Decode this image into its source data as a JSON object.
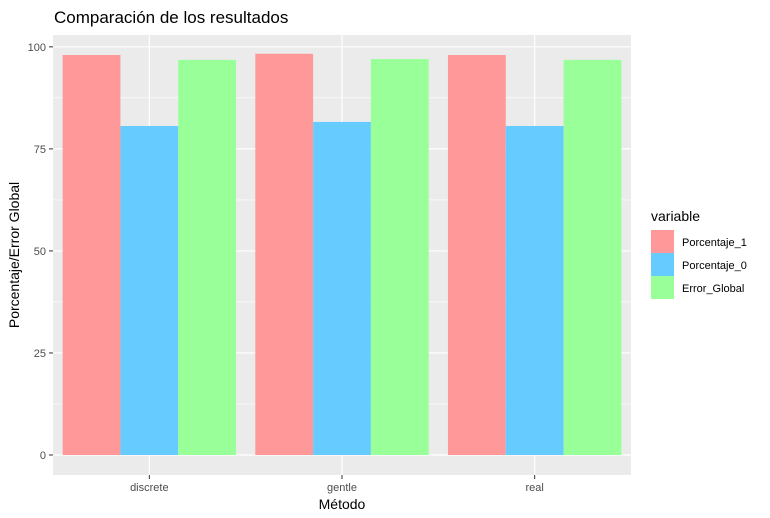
{
  "chart_data": {
    "type": "bar",
    "title": "Comparación de los resultados",
    "xlabel": "Método",
    "ylabel": "Porcentaje/Error Global",
    "categories": [
      "discrete",
      "gentle",
      "real"
    ],
    "series": [
      {
        "name": "Porcentaje_1",
        "color": "#FF9999",
        "values": [
          98.0,
          98.3,
          98.0
        ]
      },
      {
        "name": "Porcentaje_0",
        "color": "#66CCFF",
        "values": [
          80.6,
          81.6,
          80.6
        ]
      },
      {
        "name": "Error_Global",
        "color": "#99FF99",
        "values": [
          96.8,
          97.0,
          96.8
        ]
      }
    ],
    "ylim": [
      -4.9,
      102.9
    ],
    "yticks": [
      0,
      25,
      50,
      75,
      100
    ],
    "ytick_labels": [
      "0",
      "25",
      "50",
      "75",
      "100"
    ],
    "legend_title": "variable",
    "legend_position": "right",
    "grid": true,
    "panel_background": "#EBEBEB"
  }
}
